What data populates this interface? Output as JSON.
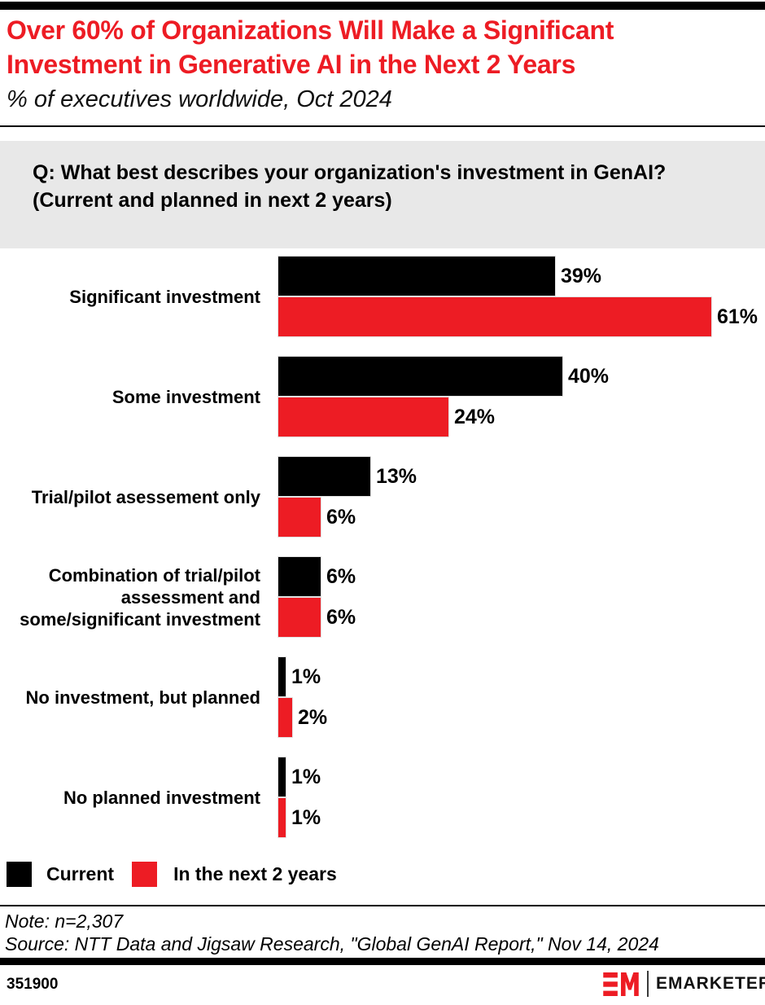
{
  "header": {
    "title": "Over 60% of Organizations Will Make a Significant Investment in Generative AI in the Next 2 Years",
    "title_lines": [
      "Over 60% of Organizations Will Make a Significant",
      "Investment in Generative AI in the Next 2 Years"
    ],
    "title_color": "#ED1C24",
    "subtitle": "% of executives worldwide, Oct 2024"
  },
  "question": {
    "bg_color": "#E8E8E8",
    "lines": [
      "Q: What best describes your organization's investment in GenAI?",
      "(Current and planned in next 2 years)"
    ]
  },
  "chart_data": {
    "type": "bar",
    "orientation": "horizontal",
    "unit": "%",
    "value_suffix": "%",
    "xlim": [
      0,
      70
    ],
    "grid": false,
    "legend_position": "bottom",
    "categories": [
      "Significant investment",
      "Some investment",
      "Trial/pilot asessement only",
      "Combination of trial/pilot assessment and some/significant investment",
      "No investment, but planned",
      "No planned investment"
    ],
    "series": [
      {
        "name": "Current",
        "color": "#000000",
        "values": [
          39,
          40,
          13,
          6,
          1,
          1
        ]
      },
      {
        "name": "In the next 2 years",
        "color": "#ED1C24",
        "values": [
          61,
          24,
          6,
          6,
          2,
          1
        ]
      }
    ]
  },
  "footer": {
    "note": "Note: n=2,307",
    "source": "Source: NTT Data and Jigsaw Research, \"Global GenAI Report,\" Nov 14, 2024",
    "chart_id": "351900",
    "brand": "EMARKETER"
  }
}
